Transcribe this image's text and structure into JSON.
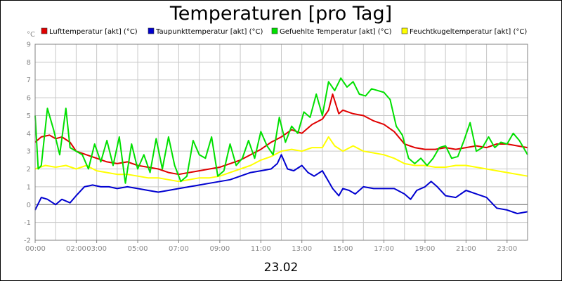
{
  "chart_data": {
    "type": "line",
    "title": "Temperaturen [pro Tag]",
    "date_label": "23.02",
    "y_unit": "°C",
    "ylim": [
      -2,
      9
    ],
    "y_ticks": [
      "-2",
      "-1",
      "0",
      "1",
      "2",
      "3",
      "4",
      "5",
      "6",
      "7",
      "8",
      "9"
    ],
    "x_range_hours": [
      0,
      24
    ],
    "x_ticks": [
      {
        "h": 0,
        "label": "00:00"
      },
      {
        "h": 2,
        "label": "02:00"
      },
      {
        "h": 3,
        "label": "03:00"
      },
      {
        "h": 5,
        "label": "05:00"
      },
      {
        "h": 7,
        "label": "07:00"
      },
      {
        "h": 9,
        "label": "09:00"
      },
      {
        "h": 11,
        "label": "11:00"
      },
      {
        "h": 13,
        "label": "13:00"
      },
      {
        "h": 15,
        "label": "15:00"
      },
      {
        "h": 17,
        "label": "17:00"
      },
      {
        "h": 19,
        "label": "19:00"
      },
      {
        "h": 21,
        "label": "21:00"
      },
      {
        "h": 23,
        "label": "23:00"
      }
    ],
    "grid": true,
    "legend_position": "top",
    "series": [
      {
        "name": "Lufttemperatur [akt] (°C)",
        "color": "#e00000",
        "x": [
          0,
          0.3,
          0.7,
          1.0,
          1.3,
          1.7,
          2.0,
          2.5,
          3.0,
          3.5,
          4.0,
          4.5,
          5.0,
          5.5,
          6.0,
          6.5,
          7.0,
          7.5,
          8.0,
          8.5,
          9.0,
          9.5,
          10.0,
          10.5,
          11.0,
          11.5,
          12.0,
          12.5,
          13.0,
          13.5,
          14.0,
          14.3,
          14.5,
          14.8,
          15.0,
          15.5,
          16.0,
          16.5,
          17.0,
          17.5,
          18.0,
          18.5,
          19.0,
          19.5,
          20.0,
          20.5,
          21.0,
          21.5,
          22.0,
          22.5,
          23.0,
          23.5,
          24.0
        ],
        "values": [
          3.5,
          3.8,
          3.9,
          3.7,
          3.8,
          3.5,
          3.0,
          2.8,
          2.6,
          2.4,
          2.3,
          2.4,
          2.2,
          2.1,
          2.0,
          1.8,
          1.7,
          1.8,
          1.9,
          2.0,
          2.1,
          2.3,
          2.5,
          2.8,
          3.1,
          3.5,
          3.8,
          4.2,
          4.0,
          4.5,
          4.8,
          5.3,
          6.2,
          5.1,
          5.3,
          5.1,
          5.0,
          4.7,
          4.5,
          4.1,
          3.4,
          3.2,
          3.1,
          3.1,
          3.2,
          3.1,
          3.2,
          3.3,
          3.2,
          3.4,
          3.4,
          3.3,
          3.2
        ]
      },
      {
        "name": "Taupunkttemperatur [akt] (°C)",
        "color": "#0000d0",
        "x": [
          0,
          0.3,
          0.6,
          1.0,
          1.3,
          1.7,
          2.0,
          2.4,
          2.8,
          3.2,
          3.6,
          4.0,
          4.5,
          5.0,
          5.5,
          6.0,
          6.5,
          7.0,
          7.5,
          8.0,
          8.5,
          9.0,
          9.5,
          10.0,
          10.5,
          11.0,
          11.5,
          11.8,
          12.0,
          12.3,
          12.6,
          13.0,
          13.3,
          13.6,
          14.0,
          14.3,
          14.5,
          14.8,
          15.0,
          15.3,
          15.6,
          16.0,
          16.5,
          17.0,
          17.5,
          18.0,
          18.3,
          18.6,
          19.0,
          19.3,
          19.6,
          20.0,
          20.5,
          21.0,
          21.5,
          22.0,
          22.5,
          23.0,
          23.5,
          24.0
        ],
        "values": [
          -0.3,
          0.4,
          0.3,
          0.0,
          0.3,
          0.1,
          0.5,
          1.0,
          1.1,
          1.0,
          1.0,
          0.9,
          1.0,
          0.9,
          0.8,
          0.7,
          0.8,
          0.9,
          1.0,
          1.1,
          1.2,
          1.3,
          1.4,
          1.6,
          1.8,
          1.9,
          2.0,
          2.3,
          2.8,
          2.0,
          1.9,
          2.2,
          1.8,
          1.6,
          1.9,
          1.3,
          0.9,
          0.5,
          0.9,
          0.8,
          0.6,
          1.0,
          0.9,
          0.9,
          0.9,
          0.6,
          0.3,
          0.8,
          1.0,
          1.3,
          1.0,
          0.5,
          0.4,
          0.8,
          0.6,
          0.4,
          -0.2,
          -0.3,
          -0.5,
          -0.4
        ]
      },
      {
        "name": "Gefuehlte Temperatur [akt] (°C)",
        "color": "#00e000",
        "x": [
          0,
          0.15,
          0.3,
          0.6,
          0.9,
          1.2,
          1.5,
          1.7,
          2.0,
          2.3,
          2.6,
          2.9,
          3.2,
          3.5,
          3.8,
          4.1,
          4.4,
          4.7,
          5.0,
          5.3,
          5.6,
          5.9,
          6.2,
          6.5,
          6.8,
          7.1,
          7.4,
          7.7,
          8.0,
          8.3,
          8.6,
          8.9,
          9.2,
          9.5,
          9.8,
          10.1,
          10.4,
          10.7,
          11.0,
          11.3,
          11.6,
          11.9,
          12.2,
          12.5,
          12.8,
          13.1,
          13.4,
          13.7,
          14.0,
          14.3,
          14.6,
          14.9,
          15.2,
          15.5,
          15.8,
          16.1,
          16.4,
          16.7,
          17.0,
          17.3,
          17.6,
          17.9,
          18.2,
          18.5,
          18.8,
          19.1,
          19.4,
          19.7,
          20.0,
          20.3,
          20.6,
          20.9,
          21.2,
          21.5,
          21.8,
          22.1,
          22.4,
          22.7,
          23.0,
          23.3,
          23.6,
          24.0
        ],
        "values": [
          5.0,
          2.0,
          2.2,
          5.4,
          4.2,
          2.8,
          5.4,
          3.2,
          3.0,
          2.8,
          2.0,
          3.4,
          2.4,
          3.6,
          2.2,
          3.8,
          1.2,
          3.4,
          2.0,
          2.8,
          1.8,
          3.7,
          2.0,
          3.8,
          2.2,
          1.3,
          1.6,
          3.6,
          2.8,
          2.6,
          3.8,
          1.6,
          1.9,
          3.4,
          2.2,
          2.6,
          3.6,
          2.6,
          4.1,
          3.3,
          2.8,
          4.9,
          3.5,
          4.4,
          4.0,
          5.2,
          4.9,
          6.2,
          5.0,
          6.9,
          6.4,
          7.1,
          6.6,
          6.9,
          6.2,
          6.1,
          6.5,
          6.4,
          6.3,
          5.9,
          4.4,
          3.9,
          2.6,
          2.3,
          2.6,
          2.2,
          2.6,
          3.2,
          3.3,
          2.6,
          2.7,
          3.6,
          4.6,
          3.0,
          3.2,
          3.8,
          3.2,
          3.5,
          3.4,
          4.0,
          3.6,
          2.8
        ]
      },
      {
        "name": "Feuchtkugeltemperatur [akt] (°C)",
        "color": "#ffff00",
        "x": [
          0,
          0.5,
          1.0,
          1.5,
          2.0,
          2.5,
          3.0,
          3.5,
          4.0,
          4.5,
          5.0,
          5.5,
          6.0,
          6.5,
          7.0,
          7.5,
          8.0,
          8.5,
          9.0,
          9.5,
          10.0,
          10.5,
          11.0,
          11.5,
          12.0,
          12.5,
          13.0,
          13.5,
          14.0,
          14.3,
          14.6,
          15.0,
          15.5,
          16.0,
          16.5,
          17.0,
          17.5,
          18.0,
          18.5,
          19.0,
          19.5,
          20.0,
          20.5,
          21.0,
          21.5,
          22.0,
          22.5,
          23.0,
          23.5,
          24.0
        ],
        "values": [
          2.0,
          2.2,
          2.1,
          2.2,
          2.0,
          2.2,
          1.9,
          1.8,
          1.7,
          1.7,
          1.6,
          1.5,
          1.5,
          1.4,
          1.3,
          1.4,
          1.5,
          1.5,
          1.6,
          1.8,
          2.0,
          2.2,
          2.5,
          2.7,
          3.0,
          3.1,
          3.0,
          3.2,
          3.2,
          3.8,
          3.3,
          3.0,
          3.3,
          3.0,
          2.9,
          2.8,
          2.6,
          2.3,
          2.2,
          2.2,
          2.1,
          2.1,
          2.2,
          2.2,
          2.1,
          2.0,
          1.9,
          1.8,
          1.7,
          1.6
        ]
      }
    ]
  }
}
